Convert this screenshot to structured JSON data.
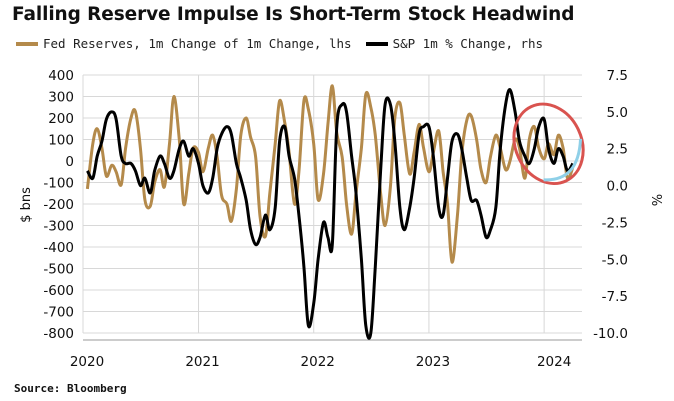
{
  "title": "Falling Reserve Impulse Is Short-Term Stock Headwind",
  "source": "Source: Bloomberg",
  "colors": {
    "fed": "#b48a4b",
    "spx": "#000000",
    "circle_red": "#d9534f",
    "circle_blue": "#8fd0e8",
    "grid": "#d8d8d8"
  },
  "chart_data": {
    "type": "line",
    "legend_position": "top-left",
    "grid": true,
    "y_left": {
      "label": "$ bns",
      "ylim": [
        -800,
        400
      ],
      "ticks": [
        "400",
        "300",
        "200",
        "100",
        "0",
        "-100",
        "-200",
        "-300",
        "-400",
        "-500",
        "-600",
        "-700",
        "-800"
      ]
    },
    "y_right": {
      "label": "%",
      "ylim": [
        -10.0,
        7.5
      ],
      "ticks": [
        "7.5",
        "5.0",
        "2.5",
        "0.0",
        "-2.5",
        "-5.0",
        "-7.5",
        "-10.0"
      ]
    },
    "x_labels": [
      "2020",
      "2021",
      "2022",
      "2023",
      "2024"
    ],
    "x_domain": [
      "2020-01-01",
      "2024-04-30"
    ],
    "annotation": "ellipse highlighting recent decline (late 2023 to 2024)",
    "series": [
      {
        "name": "Fed Reserves, 1m Change of 1m Change, lhs",
        "axis": "left",
        "color": "#b48a4b",
        "x": [
          "2020-01-15",
          "2020-02-01",
          "2020-02-15",
          "2020-03-01",
          "2020-03-15",
          "2020-04-01",
          "2020-04-15",
          "2020-05-01",
          "2020-05-15",
          "2020-06-01",
          "2020-06-15",
          "2020-07-01",
          "2020-07-15",
          "2020-08-01",
          "2020-08-15",
          "2020-09-01",
          "2020-09-15",
          "2020-10-01",
          "2020-10-15",
          "2020-11-01",
          "2020-11-15",
          "2020-12-01",
          "2020-12-15",
          "2021-01-01",
          "2021-01-15",
          "2021-02-01",
          "2021-02-15",
          "2021-03-01",
          "2021-03-15",
          "2021-04-01",
          "2021-04-15",
          "2021-05-01",
          "2021-05-15",
          "2021-06-01",
          "2021-06-15",
          "2021-07-01",
          "2021-07-15",
          "2021-08-01",
          "2021-08-15",
          "2021-09-01",
          "2021-09-15",
          "2021-10-01",
          "2021-10-15",
          "2021-11-01",
          "2021-11-15",
          "2021-12-01",
          "2021-12-15",
          "2022-01-01",
          "2022-01-15",
          "2022-02-01",
          "2022-02-15",
          "2022-03-01",
          "2022-03-15",
          "2022-04-01",
          "2022-04-15",
          "2022-05-01",
          "2022-05-15",
          "2022-06-01",
          "2022-06-15",
          "2022-07-01",
          "2022-07-15",
          "2022-08-01",
          "2022-08-15",
          "2022-09-01",
          "2022-09-15",
          "2022-10-01",
          "2022-10-15",
          "2022-11-01",
          "2022-11-15",
          "2022-12-01",
          "2022-12-15",
          "2023-01-01",
          "2023-01-15",
          "2023-02-01",
          "2023-02-15",
          "2023-03-01",
          "2023-03-15",
          "2023-04-01",
          "2023-04-15",
          "2023-05-01",
          "2023-05-15",
          "2023-06-01",
          "2023-06-15",
          "2023-07-01",
          "2023-07-15",
          "2023-08-01",
          "2023-08-15",
          "2023-09-01",
          "2023-09-15",
          "2023-10-01",
          "2023-10-15",
          "2023-11-01",
          "2023-11-15",
          "2023-12-01",
          "2023-12-15",
          "2024-01-01",
          "2024-01-15",
          "2024-02-01",
          "2024-02-15",
          "2024-03-01",
          "2024-03-15",
          "2024-04-01"
        ],
        "values": [
          -130,
          80,
          150,
          60,
          -70,
          -20,
          -50,
          -110,
          60,
          200,
          230,
          60,
          -180,
          -210,
          -100,
          -40,
          -120,
          80,
          300,
          100,
          -200,
          -60,
          60,
          40,
          -50,
          60,
          120,
          20,
          -160,
          -200,
          -280,
          -130,
          120,
          200,
          110,
          20,
          -260,
          -350,
          -150,
          80,
          280,
          180,
          40,
          -200,
          -50,
          280,
          240,
          80,
          -180,
          -60,
          170,
          350,
          130,
          20,
          -200,
          -340,
          -150,
          60,
          310,
          250,
          120,
          -150,
          -300,
          -120,
          200,
          270,
          120,
          -60,
          40,
          170,
          60,
          -50,
          40,
          140,
          -50,
          -200,
          -470,
          -260,
          30,
          190,
          210,
          100,
          -40,
          -100,
          20,
          120,
          60,
          -40,
          0,
          100,
          60,
          -80,
          100,
          160,
          60,
          10,
          80,
          30,
          120,
          60,
          -80,
          -30
        ]
      },
      {
        "name": "S&P 1m % Change, rhs",
        "axis": "right",
        "color": "#000000",
        "x": [
          "2020-01-15",
          "2020-02-01",
          "2020-02-15",
          "2020-03-01",
          "2020-03-15",
          "2020-04-01",
          "2020-04-15",
          "2020-05-01",
          "2020-05-15",
          "2020-06-01",
          "2020-06-15",
          "2020-07-01",
          "2020-07-15",
          "2020-08-01",
          "2020-08-15",
          "2020-09-01",
          "2020-09-15",
          "2020-10-01",
          "2020-10-15",
          "2020-11-01",
          "2020-11-15",
          "2020-12-01",
          "2020-12-15",
          "2021-01-01",
          "2021-01-15",
          "2021-02-01",
          "2021-02-15",
          "2021-03-01",
          "2021-03-15",
          "2021-04-01",
          "2021-04-15",
          "2021-05-01",
          "2021-05-15",
          "2021-06-01",
          "2021-06-15",
          "2021-07-01",
          "2021-07-15",
          "2021-08-01",
          "2021-08-15",
          "2021-09-01",
          "2021-09-15",
          "2021-10-01",
          "2021-10-15",
          "2021-11-01",
          "2021-11-15",
          "2021-12-01",
          "2021-12-15",
          "2022-01-01",
          "2022-01-15",
          "2022-02-01",
          "2022-02-15",
          "2022-03-01",
          "2022-03-15",
          "2022-04-01",
          "2022-04-15",
          "2022-05-01",
          "2022-05-15",
          "2022-06-01",
          "2022-06-15",
          "2022-07-01",
          "2022-07-15",
          "2022-08-01",
          "2022-08-15",
          "2022-09-01",
          "2022-09-15",
          "2022-10-01",
          "2022-10-15",
          "2022-11-01",
          "2022-11-15",
          "2022-12-01",
          "2022-12-15",
          "2023-01-01",
          "2023-01-15",
          "2023-02-01",
          "2023-02-15",
          "2023-03-01",
          "2023-03-15",
          "2023-04-01",
          "2023-04-15",
          "2023-05-01",
          "2023-05-15",
          "2023-06-01",
          "2023-06-15",
          "2023-07-01",
          "2023-07-15",
          "2023-08-01",
          "2023-08-15",
          "2023-09-01",
          "2023-09-15",
          "2023-10-01",
          "2023-10-15",
          "2023-11-01",
          "2023-11-15",
          "2023-12-01",
          "2023-12-15",
          "2024-01-01",
          "2024-01-15",
          "2024-02-01",
          "2024-02-15",
          "2024-03-01",
          "2024-03-15",
          "2024-04-01"
        ],
        "values": [
          1.0,
          0.5,
          2.0,
          3.0,
          4.5,
          5.0,
          4.5,
          2.0,
          1.5,
          1.5,
          1.0,
          0.0,
          0.5,
          -0.5,
          1.0,
          2.0,
          1.5,
          0.5,
          1.0,
          2.5,
          3.0,
          2.0,
          2.5,
          1.5,
          0.0,
          -0.5,
          0.5,
          2.5,
          3.5,
          4.0,
          3.5,
          1.5,
          0.5,
          -1.0,
          -3.0,
          -4.0,
          -3.5,
          -2.0,
          -3.0,
          -1.5,
          3.0,
          4.0,
          2.0,
          0.5,
          -2.0,
          -5.5,
          -9.5,
          -8.0,
          -5.0,
          -2.5,
          -3.5,
          -4.0,
          4.0,
          5.5,
          5.0,
          2.0,
          -0.5,
          -5.0,
          -9.5,
          -10.0,
          -5.5,
          1.0,
          5.5,
          5.5,
          3.0,
          -1.5,
          -3.0,
          -1.5,
          0.5,
          3.5,
          4.0,
          4.0,
          2.0,
          -1.5,
          -2.0,
          0.5,
          3.0,
          3.5,
          2.5,
          0.5,
          -1.0,
          -1.0,
          -2.0,
          -3.5,
          -3.0,
          -1.5,
          2.5,
          5.5,
          6.5,
          5.0,
          3.0,
          2.0,
          1.5,
          2.5,
          4.0,
          4.5,
          2.5,
          1.5,
          2.5,
          2.0,
          1.0,
          1.5
        ]
      }
    ]
  }
}
